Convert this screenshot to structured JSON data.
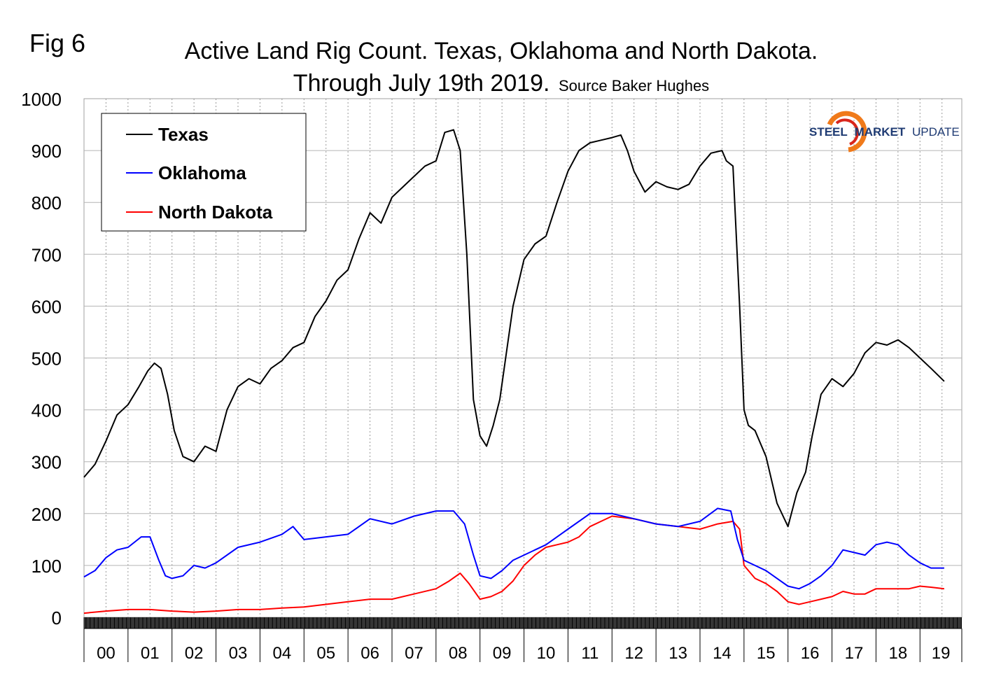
{
  "figure_label": "Fig 6",
  "logo": {
    "word1": "STEEL",
    "word2": "MARKET",
    "word3": "UPDATE"
  },
  "chart_data": {
    "type": "line",
    "title_line1": "Active Land Rig Count. Texas, Oklahoma and North Dakota.",
    "title_line2": "Through July 19th 2019.",
    "source": "Source Baker Hughes",
    "xlabel": "",
    "ylabel": "",
    "ylim": [
      0,
      1000
    ],
    "yticks": [
      0,
      100,
      200,
      300,
      400,
      500,
      600,
      700,
      800,
      900,
      1000
    ],
    "xlim": [
      2000.0,
      2019.95
    ],
    "year_labels": [
      "00",
      "01",
      "02",
      "03",
      "04",
      "05",
      "06",
      "07",
      "08",
      "09",
      "10",
      "11",
      "12",
      "13",
      "14",
      "15",
      "16",
      "17",
      "18",
      "19"
    ],
    "grid": true,
    "legend_position": "top-left",
    "colors": {
      "Texas": "#000000",
      "Oklahoma": "#0000ff",
      "North Dakota": "#ff0000"
    },
    "series": [
      {
        "name": "Texas",
        "x": [
          2000.0,
          2000.25,
          2000.5,
          2000.75,
          2001.0,
          2001.25,
          2001.45,
          2001.6,
          2001.75,
          2001.9,
          2002.05,
          2002.25,
          2002.5,
          2002.75,
          2003.0,
          2003.25,
          2003.5,
          2003.75,
          2004.0,
          2004.25,
          2004.5,
          2004.75,
          2005.0,
          2005.25,
          2005.5,
          2005.75,
          2006.0,
          2006.25,
          2006.5,
          2006.75,
          2007.0,
          2007.25,
          2007.5,
          2007.75,
          2008.0,
          2008.2,
          2008.4,
          2008.55,
          2008.7,
          2008.85,
          2009.0,
          2009.15,
          2009.3,
          2009.45,
          2009.6,
          2009.75,
          2010.0,
          2010.25,
          2010.5,
          2010.75,
          2011.0,
          2011.25,
          2011.5,
          2011.75,
          2012.0,
          2012.2,
          2012.35,
          2012.5,
          2012.75,
          2013.0,
          2013.25,
          2013.5,
          2013.75,
          2014.0,
          2014.25,
          2014.5,
          2014.6,
          2014.75,
          2014.9,
          2015.0,
          2015.1,
          2015.25,
          2015.5,
          2015.75,
          2016.0,
          2016.2,
          2016.4,
          2016.55,
          2016.75,
          2017.0,
          2017.25,
          2017.5,
          2017.75,
          2018.0,
          2018.25,
          2018.5,
          2018.75,
          2019.0,
          2019.25,
          2019.55
        ],
        "values": [
          270,
          295,
          340,
          390,
          410,
          445,
          475,
          490,
          480,
          430,
          360,
          310,
          300,
          330,
          320,
          400,
          445,
          460,
          450,
          480,
          495,
          520,
          530,
          580,
          610,
          650,
          670,
          730,
          780,
          760,
          810,
          830,
          850,
          870,
          880,
          935,
          940,
          900,
          700,
          420,
          350,
          330,
          370,
          420,
          510,
          600,
          690,
          720,
          735,
          800,
          860,
          900,
          915,
          920,
          925,
          930,
          900,
          860,
          820,
          840,
          830,
          825,
          835,
          870,
          895,
          900,
          880,
          870,
          600,
          400,
          370,
          360,
          310,
          220,
          175,
          240,
          280,
          350,
          430,
          460,
          445,
          470,
          510,
          530,
          525,
          535,
          520,
          500,
          480,
          455
        ]
      },
      {
        "name": "Oklahoma",
        "x": [
          2000.0,
          2000.25,
          2000.5,
          2000.75,
          2001.0,
          2001.3,
          2001.5,
          2001.7,
          2001.85,
          2002.0,
          2002.25,
          2002.5,
          2002.75,
          2003.0,
          2003.5,
          2004.0,
          2004.5,
          2004.75,
          2005.0,
          2005.5,
          2006.0,
          2006.5,
          2007.0,
          2007.5,
          2008.0,
          2008.4,
          2008.65,
          2008.85,
          2009.0,
          2009.25,
          2009.5,
          2009.75,
          2010.0,
          2010.5,
          2011.0,
          2011.5,
          2012.0,
          2012.5,
          2013.0,
          2013.5,
          2014.0,
          2014.4,
          2014.7,
          2014.85,
          2015.0,
          2015.25,
          2015.5,
          2015.75,
          2016.0,
          2016.25,
          2016.5,
          2016.75,
          2017.0,
          2017.25,
          2017.5,
          2017.75,
          2018.0,
          2018.25,
          2018.5,
          2018.75,
          2019.0,
          2019.25,
          2019.55
        ],
        "values": [
          78,
          90,
          115,
          130,
          135,
          155,
          155,
          110,
          80,
          75,
          80,
          100,
          95,
          105,
          135,
          145,
          160,
          175,
          150,
          155,
          160,
          190,
          180,
          195,
          205,
          205,
          180,
          120,
          80,
          75,
          90,
          110,
          120,
          140,
          170,
          200,
          200,
          190,
          180,
          175,
          185,
          210,
          205,
          150,
          110,
          100,
          90,
          75,
          60,
          55,
          65,
          80,
          100,
          130,
          125,
          120,
          140,
          145,
          140,
          120,
          105,
          95,
          95
        ]
      },
      {
        "name": "North Dakota",
        "x": [
          2000.0,
          2000.5,
          2001.0,
          2001.5,
          2002.0,
          2002.5,
          2003.0,
          2003.5,
          2004.0,
          2004.5,
          2005.0,
          2005.5,
          2006.0,
          2006.5,
          2007.0,
          2007.5,
          2008.0,
          2008.3,
          2008.55,
          2008.75,
          2009.0,
          2009.25,
          2009.5,
          2009.75,
          2010.0,
          2010.25,
          2010.5,
          2010.75,
          2011.0,
          2011.25,
          2011.5,
          2011.75,
          2012.0,
          2012.5,
          2013.0,
          2013.5,
          2014.0,
          2014.4,
          2014.75,
          2014.9,
          2015.0,
          2015.25,
          2015.5,
          2015.75,
          2016.0,
          2016.25,
          2016.5,
          2016.75,
          2017.0,
          2017.25,
          2017.5,
          2017.75,
          2018.0,
          2018.25,
          2018.5,
          2018.75,
          2019.0,
          2019.25,
          2019.55
        ],
        "values": [
          8,
          12,
          15,
          15,
          12,
          10,
          12,
          15,
          15,
          18,
          20,
          25,
          30,
          35,
          35,
          45,
          55,
          70,
          85,
          65,
          35,
          40,
          50,
          70,
          100,
          120,
          135,
          140,
          145,
          155,
          175,
          185,
          195,
          190,
          180,
          175,
          170,
          180,
          185,
          170,
          100,
          75,
          65,
          50,
          30,
          25,
          30,
          35,
          40,
          50,
          45,
          45,
          55,
          55,
          55,
          55,
          60,
          58,
          55
        ]
      }
    ]
  }
}
